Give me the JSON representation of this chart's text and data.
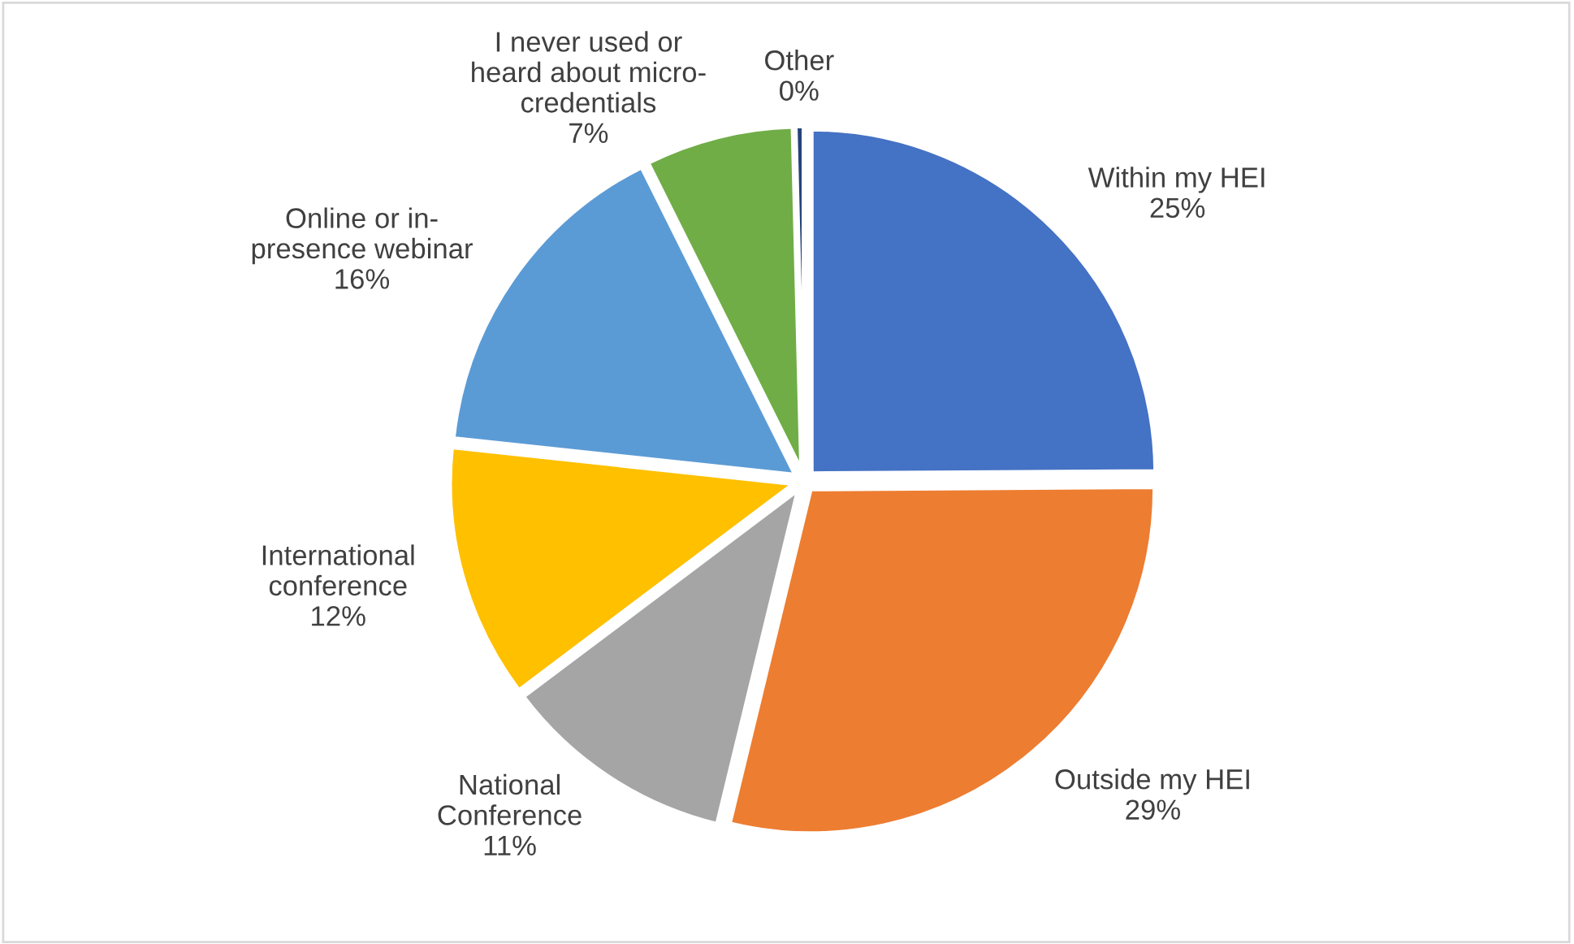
{
  "chart_data": {
    "type": "pie",
    "categories": [
      "Within my HEI",
      "Outside my HEI",
      "National\nConference",
      "International\nconference",
      "Online or in-\npresence webinar",
      "I never used or\nheard about micro-\ncredentials",
      "Other"
    ],
    "values": [
      25,
      29,
      11,
      12,
      16,
      7,
      0.4
    ],
    "value_labels": [
      "25%",
      "29%",
      "11%",
      "12%",
      "16%",
      "7%",
      "0%"
    ],
    "colors": [
      "#4472c4",
      "#ed7d31",
      "#a5a5a5",
      "#ffc000",
      "#5b9bd5",
      "#70ad47",
      "#264478"
    ],
    "legend": false
  }
}
